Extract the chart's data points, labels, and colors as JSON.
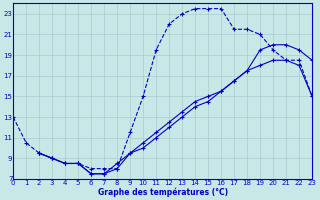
{
  "title": "Graphe des températures (°C)",
  "bg_color": "#c8e8e8",
  "grid_color": "#aacccc",
  "line_color": "#0000cc",
  "xlim": [
    0,
    23
  ],
  "ylim": [
    7,
    24
  ],
  "xticks": [
    0,
    1,
    2,
    3,
    4,
    5,
    6,
    7,
    8,
    9,
    10,
    11,
    12,
    13,
    14,
    15,
    16,
    17,
    18,
    19,
    20,
    21,
    22,
    23
  ],
  "yticks": [
    7,
    9,
    11,
    13,
    15,
    17,
    19,
    21,
    23
  ],
  "curve1_x": [
    0,
    1,
    2,
    3,
    4,
    5,
    6,
    7,
    8,
    9,
    10,
    11,
    12,
    13,
    14,
    15,
    16,
    17,
    18,
    19,
    20,
    21,
    22,
    23
  ],
  "curve1_y": [
    13.0,
    10.5,
    9.5,
    9.0,
    8.5,
    8.5,
    8.0,
    8.0,
    8.0,
    11.5,
    15.0,
    19.5,
    22.0,
    23.0,
    23.5,
    23.5,
    23.5,
    21.5,
    21.5,
    21.0,
    19.5,
    18.5,
    18.5,
    15.0
  ],
  "curve2_x": [
    2,
    3,
    4,
    5,
    6,
    7,
    8,
    9,
    10,
    11,
    12,
    13,
    14,
    15,
    16,
    17,
    18,
    19,
    20,
    21,
    22,
    23
  ],
  "curve2_y": [
    9.5,
    9.0,
    8.5,
    8.5,
    7.5,
    7.5,
    8.0,
    9.5,
    10.0,
    11.0,
    12.0,
    13.0,
    14.0,
    14.5,
    15.5,
    16.5,
    17.5,
    19.5,
    20.0,
    20.0,
    19.5,
    18.5
  ],
  "curve3_x": [
    2,
    3,
    4,
    5,
    6,
    7,
    8,
    9,
    10,
    11,
    12,
    13,
    14,
    15,
    16,
    17,
    18,
    19,
    20,
    21,
    22,
    23
  ],
  "curve3_y": [
    9.5,
    9.0,
    8.5,
    8.5,
    7.5,
    7.5,
    8.5,
    9.5,
    10.5,
    11.5,
    12.5,
    13.5,
    14.5,
    15.0,
    15.5,
    16.5,
    17.5,
    18.0,
    18.5,
    18.5,
    18.0,
    15.0
  ]
}
